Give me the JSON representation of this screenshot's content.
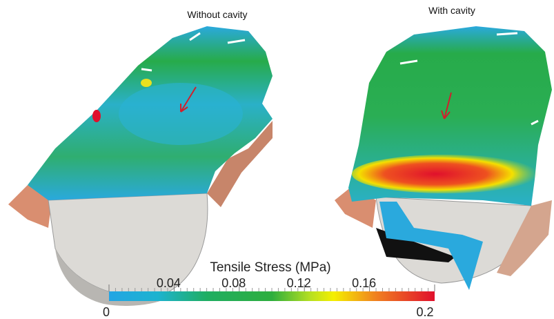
{
  "labels": {
    "left": "Without cavity",
    "right": "With cavity"
  },
  "colorbar": {
    "title": "Tensile Stress (MPa)",
    "range": [
      0,
      0.2
    ],
    "ticks": [
      0,
      0.04,
      0.08,
      0.12,
      0.16,
      0.2
    ]
  }
}
